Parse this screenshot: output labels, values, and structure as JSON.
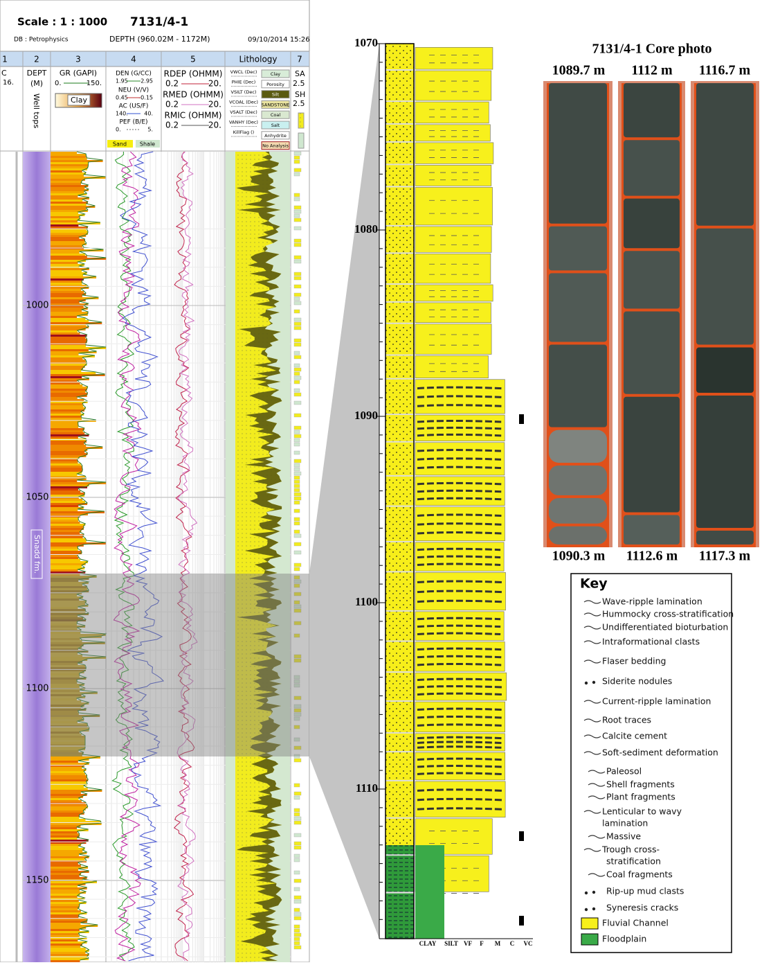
{
  "header": {
    "scale": "Scale : 1 : 1000",
    "well": "7131/4-1",
    "database": "DB : Petrophysics",
    "depth_range": "DEPTH (960.02M - 1172M)",
    "date": "09/10/2014 15:26"
  },
  "track_numbers": [
    "1",
    "2",
    "3",
    "4",
    "5",
    "Lithology",
    "7"
  ],
  "track_headers": {
    "cut": [
      "C",
      "16."
    ],
    "dept": [
      "DEPT",
      "(M)",
      "Well tops"
    ],
    "gr": [
      "GR (GAPI)",
      "0.",
      "150.",
      "Clay"
    ],
    "porosity": [
      "DEN (G/CC)",
      "1.95",
      "2.95",
      "NEU (V/V)",
      "0.45",
      "-0.15",
      "AC (US/F)",
      "140.",
      "40.",
      "PEF (B/E)",
      "0.",
      "5.",
      "Sand",
      "Shale"
    ],
    "resistivity": [
      "RDEP (OHMM)",
      "0.2",
      "20.",
      "RMED (OHMM)",
      "0.2",
      "20.",
      "RMIC (OHMM)",
      "0.2",
      "20."
    ],
    "lithology_curves": [
      "VWCL (Dec)",
      "PHIE (Dec)",
      "VSILT (Dec)",
      "VCOAL (Dec)",
      "VSALT (Dec)",
      "VANHY (Dec)",
      "KillFlag ()"
    ],
    "lithology_boxes": [
      "Clay",
      "Porosity",
      "Silt",
      "SANDSTONE",
      "Coal",
      "Salt",
      "Anhydrite",
      "No Analysis"
    ],
    "flags": [
      "SA",
      "2.5",
      "SH",
      "2.5"
    ]
  },
  "log_depths": [
    "1000",
    "1050",
    "1100",
    "1150"
  ],
  "formation": "Snadd fm.",
  "core_log": {
    "depths": [
      "1070",
      "1080",
      "1090",
      "1100",
      "1110"
    ],
    "grain_sizes": [
      "CLAY",
      "SILT",
      "VF",
      "F",
      "M",
      "C",
      "VC"
    ]
  },
  "core_photo": {
    "title": "7131/4-1 Core photo",
    "top_depths": [
      "1089.7 m",
      "1112 m",
      "1116.7 m"
    ],
    "bottom_depths": [
      "1090.3 m",
      "1112.6 m",
      "1117.3 m"
    ]
  },
  "key": {
    "title": "Key",
    "items": [
      [
        "Wave-ripple lamination"
      ],
      [
        "Hummocky cross-stratification"
      ],
      [
        "Undifferentiated bioturbation"
      ],
      [
        "Intraformational clasts"
      ],
      [
        "Flaser bedding"
      ],
      [
        "Siderite nodules"
      ],
      [
        "Current-ripple lamination"
      ],
      [
        "Root traces"
      ],
      [
        "Calcite cement"
      ],
      [
        "Soft-sediment deformation"
      ],
      [
        "Paleosol"
      ],
      [
        "Shell fragments"
      ],
      [
        "Plant fragments"
      ],
      [
        "Lenticular to wavy",
        "lamination"
      ],
      [
        "Massive"
      ],
      [
        "Trough cross-",
        "stratification"
      ],
      [
        "Coal fragments"
      ],
      [
        "Rip-up mud clasts"
      ],
      [
        "Syneresis cracks"
      ],
      [
        "Fluvial Channel"
      ],
      [
        "Floodplain"
      ]
    ]
  }
}
